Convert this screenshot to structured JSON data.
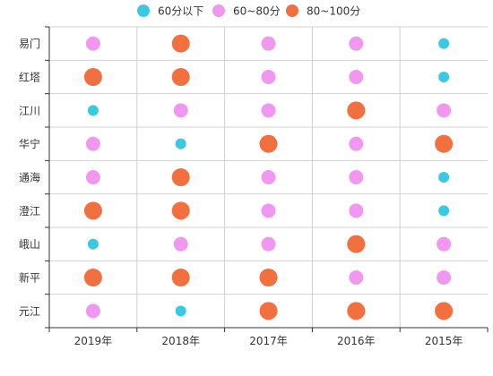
{
  "chart_data": {
    "type": "scatter",
    "title": "",
    "xlabel": "",
    "ylabel": "",
    "x_categories": [
      "2019年",
      "2018年",
      "2017年",
      "2016年",
      "2015年"
    ],
    "y_categories": [
      "易门",
      "红塔",
      "江川",
      "华宁",
      "通海",
      "澄江",
      "峨山",
      "新平",
      "元江"
    ],
    "legend": {
      "placement": "top-center",
      "items": [
        {
          "key": "low",
          "label": "60分以下",
          "color": "#3cc8e0"
        },
        {
          "key": "mid",
          "label": "60~80分",
          "color": "#f097f0"
        },
        {
          "key": "high",
          "label": "80~100分",
          "color": "#f07040"
        }
      ]
    },
    "grid": true,
    "values": [
      [
        "mid",
        "high",
        "mid",
        "mid",
        "low"
      ],
      [
        "high",
        "high",
        "mid",
        "mid",
        "low"
      ],
      [
        "low",
        "mid",
        "mid",
        "high",
        "mid"
      ],
      [
        "mid",
        "low",
        "high",
        "mid",
        "high"
      ],
      [
        "mid",
        "high",
        "mid",
        "mid",
        "low"
      ],
      [
        "high",
        "high",
        "mid",
        "mid",
        "low"
      ],
      [
        "low",
        "mid",
        "mid",
        "high",
        "mid"
      ],
      [
        "high",
        "high",
        "high",
        "mid",
        "mid"
      ],
      [
        "mid",
        "low",
        "high",
        "high",
        "high"
      ]
    ]
  }
}
